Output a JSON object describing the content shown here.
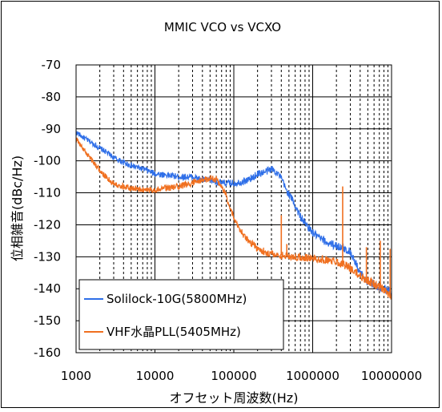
{
  "chart_data": {
    "type": "line",
    "title": "MMIC VCO vs VCXO",
    "xlabel": "オフセット周波数(Hz)",
    "ylabel": "位相雑音(dBc/Hz)",
    "x_scale": "log",
    "xlim": [
      1000,
      10000000
    ],
    "ylim": [
      -160,
      -70
    ],
    "x_ticks": [
      1000,
      10000,
      100000,
      1000000,
      10000000
    ],
    "x_tick_labels": [
      "1000",
      "10000",
      "100000",
      "1000000",
      "10000000"
    ],
    "y_ticks": [
      -70,
      -80,
      -90,
      -100,
      -110,
      -120,
      -130,
      -140,
      -150,
      -160
    ],
    "y_tick_labels": [
      "-70",
      "-80",
      "-90",
      "-100",
      "-110",
      "-120",
      "-130",
      "-140",
      "-150",
      "-160"
    ],
    "grid": {
      "x_major": true,
      "x_minor": true,
      "x_minor_style": "dashed",
      "y_major": true
    },
    "legend_position": "bottom-left",
    "series": [
      {
        "name": "Solilock-10G(5800MHz)",
        "color": "#2F6FE8",
        "x": [
          1000,
          1200,
          1500,
          2000,
          2500,
          3000,
          4000,
          5000,
          7000,
          10000,
          15000,
          20000,
          30000,
          40000,
          50000,
          60000,
          70000,
          80000,
          100000,
          130000,
          170000,
          200000,
          250000,
          300000,
          350000,
          400000,
          450000,
          500000,
          550000,
          600000,
          700000,
          800000,
          1000000,
          1200000,
          1500000,
          2000000,
          2500000,
          3000000,
          3500000,
          4000000,
          5000000,
          6000000,
          7000000,
          8000000,
          9000000,
          10000000
        ],
        "y": [
          -91,
          -92.5,
          -94,
          -96,
          -97.5,
          -99,
          -100.5,
          -101.5,
          -102.5,
          -104,
          -104.5,
          -105,
          -105,
          -106,
          -106,
          -106.5,
          -107,
          -107,
          -107,
          -106.5,
          -105.5,
          -104,
          -103.5,
          -102.5,
          -103.5,
          -105.5,
          -108.5,
          -110.5,
          -112,
          -114,
          -117.5,
          -119.5,
          -122.5,
          -124,
          -125.5,
          -126.5,
          -127.5,
          -128.5,
          -132,
          -135,
          -138,
          -139,
          -139.5,
          -140,
          -140.5,
          -141
        ]
      },
      {
        "name": "VHF水晶PLL(5405MHz)",
        "color": "#F07020",
        "x": [
          1000,
          1200,
          1500,
          2000,
          2500,
          3000,
          4000,
          5000,
          7000,
          10000,
          15000,
          20000,
          30000,
          40000,
          50000,
          55000,
          60000,
          70000,
          80000,
          100000,
          130000,
          170000,
          200000,
          250000,
          300000,
          400000,
          500000,
          700000,
          1000000,
          1500000,
          2000000,
          2500000,
          3000000,
          3500000,
          4000000,
          5000000,
          6000000,
          7000000,
          8000000,
          9000000,
          10000000
        ],
        "y": [
          -93,
          -96,
          -99,
          -103,
          -105.5,
          -107,
          -108,
          -108.5,
          -109,
          -109,
          -108.5,
          -108,
          -107,
          -106,
          -105.5,
          -105.5,
          -106,
          -108,
          -111,
          -118,
          -123,
          -126,
          -127.5,
          -128.5,
          -129,
          -129.5,
          -130,
          -130,
          -130.5,
          -131,
          -131.5,
          -132.5,
          -133.5,
          -135,
          -136,
          -137.5,
          -138.5,
          -139.5,
          -140.5,
          -141.5,
          -142
        ]
      }
    ],
    "spurs": [
      {
        "series": 1,
        "x": 400000,
        "y": -117
      },
      {
        "series": 1,
        "x": 470000,
        "y": -126
      },
      {
        "series": 1,
        "x": 2400000,
        "y": -108
      },
      {
        "series": 1,
        "x": 4800000,
        "y": -127
      },
      {
        "series": 1,
        "x": 7200000,
        "y": -125
      },
      {
        "series": 1,
        "x": 9600000,
        "y": -127.5
      }
    ]
  }
}
